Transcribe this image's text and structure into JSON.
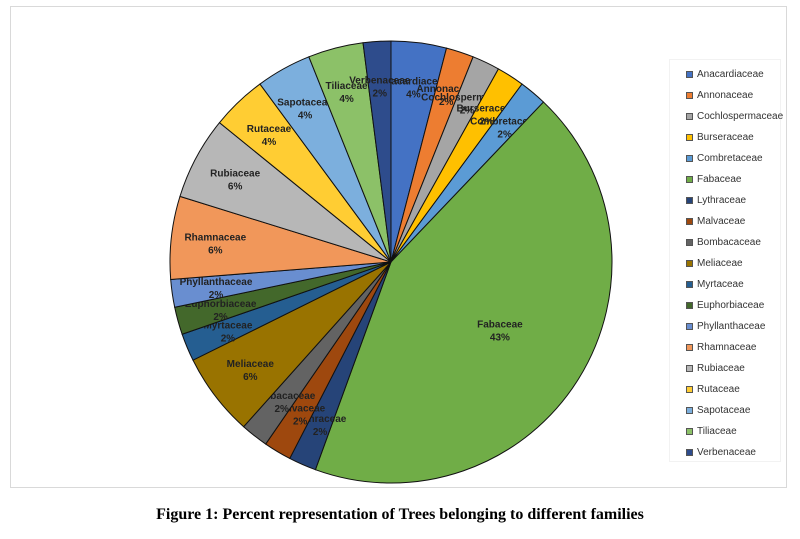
{
  "caption": "Figure 1: Percent representation of Trees belonging to different families",
  "chart_data": {
    "type": "pie",
    "legend_position": "right",
    "slices": [
      {
        "name": "Anacardiaceae",
        "value": 4,
        "label": "4%",
        "color": "#4472C4"
      },
      {
        "name": "Annonaceae",
        "value": 2,
        "label": "2%",
        "color": "#ED7D31"
      },
      {
        "name": "Cochlospermaceae",
        "value": 2,
        "label": "2%",
        "color": "#A5A5A5"
      },
      {
        "name": "Burseraceae",
        "value": 2,
        "label": "2%",
        "color": "#FFC000"
      },
      {
        "name": "Combretaceae",
        "value": 2,
        "label": "2%",
        "color": "#5B9BD5"
      },
      {
        "name": "Fabaceae",
        "value": 43,
        "label": "43%",
        "color": "#70AD47"
      },
      {
        "name": "Lythraceae",
        "value": 2,
        "label": "2%",
        "color": "#264478"
      },
      {
        "name": "Malvaceae",
        "value": 2,
        "label": "2%",
        "color": "#9E480E"
      },
      {
        "name": "Bombacaceae",
        "value": 2,
        "label": "2%",
        "color": "#636363"
      },
      {
        "name": "Meliaceae",
        "value": 6,
        "label": "6%",
        "color": "#997300"
      },
      {
        "name": "Myrtaceae",
        "value": 2,
        "label": "2%",
        "color": "#255E91"
      },
      {
        "name": "Euphorbiaceae",
        "value": 2,
        "label": "2%",
        "color": "#43682B"
      },
      {
        "name": "Phyllanthaceae",
        "value": 2,
        "label": "2%",
        "color": "#698ED0"
      },
      {
        "name": "Rhamnaceae",
        "value": 6,
        "label": "6%",
        "color": "#F1975A"
      },
      {
        "name": "Rubiaceae",
        "value": 6,
        "label": "6%",
        "color": "#B7B7B7"
      },
      {
        "name": "Rutaceae",
        "value": 4,
        "label": "4%",
        "color": "#FFCD33"
      },
      {
        "name": "Sapotaceae",
        "value": 4,
        "label": "4%",
        "color": "#7CAFDD"
      },
      {
        "name": "Tiliaceae",
        "value": 4,
        "label": "4%",
        "color": "#8CC168"
      },
      {
        "name": "Verbenaceae",
        "value": 2,
        "label": "2%",
        "color": "#2E4C8C"
      }
    ]
  }
}
